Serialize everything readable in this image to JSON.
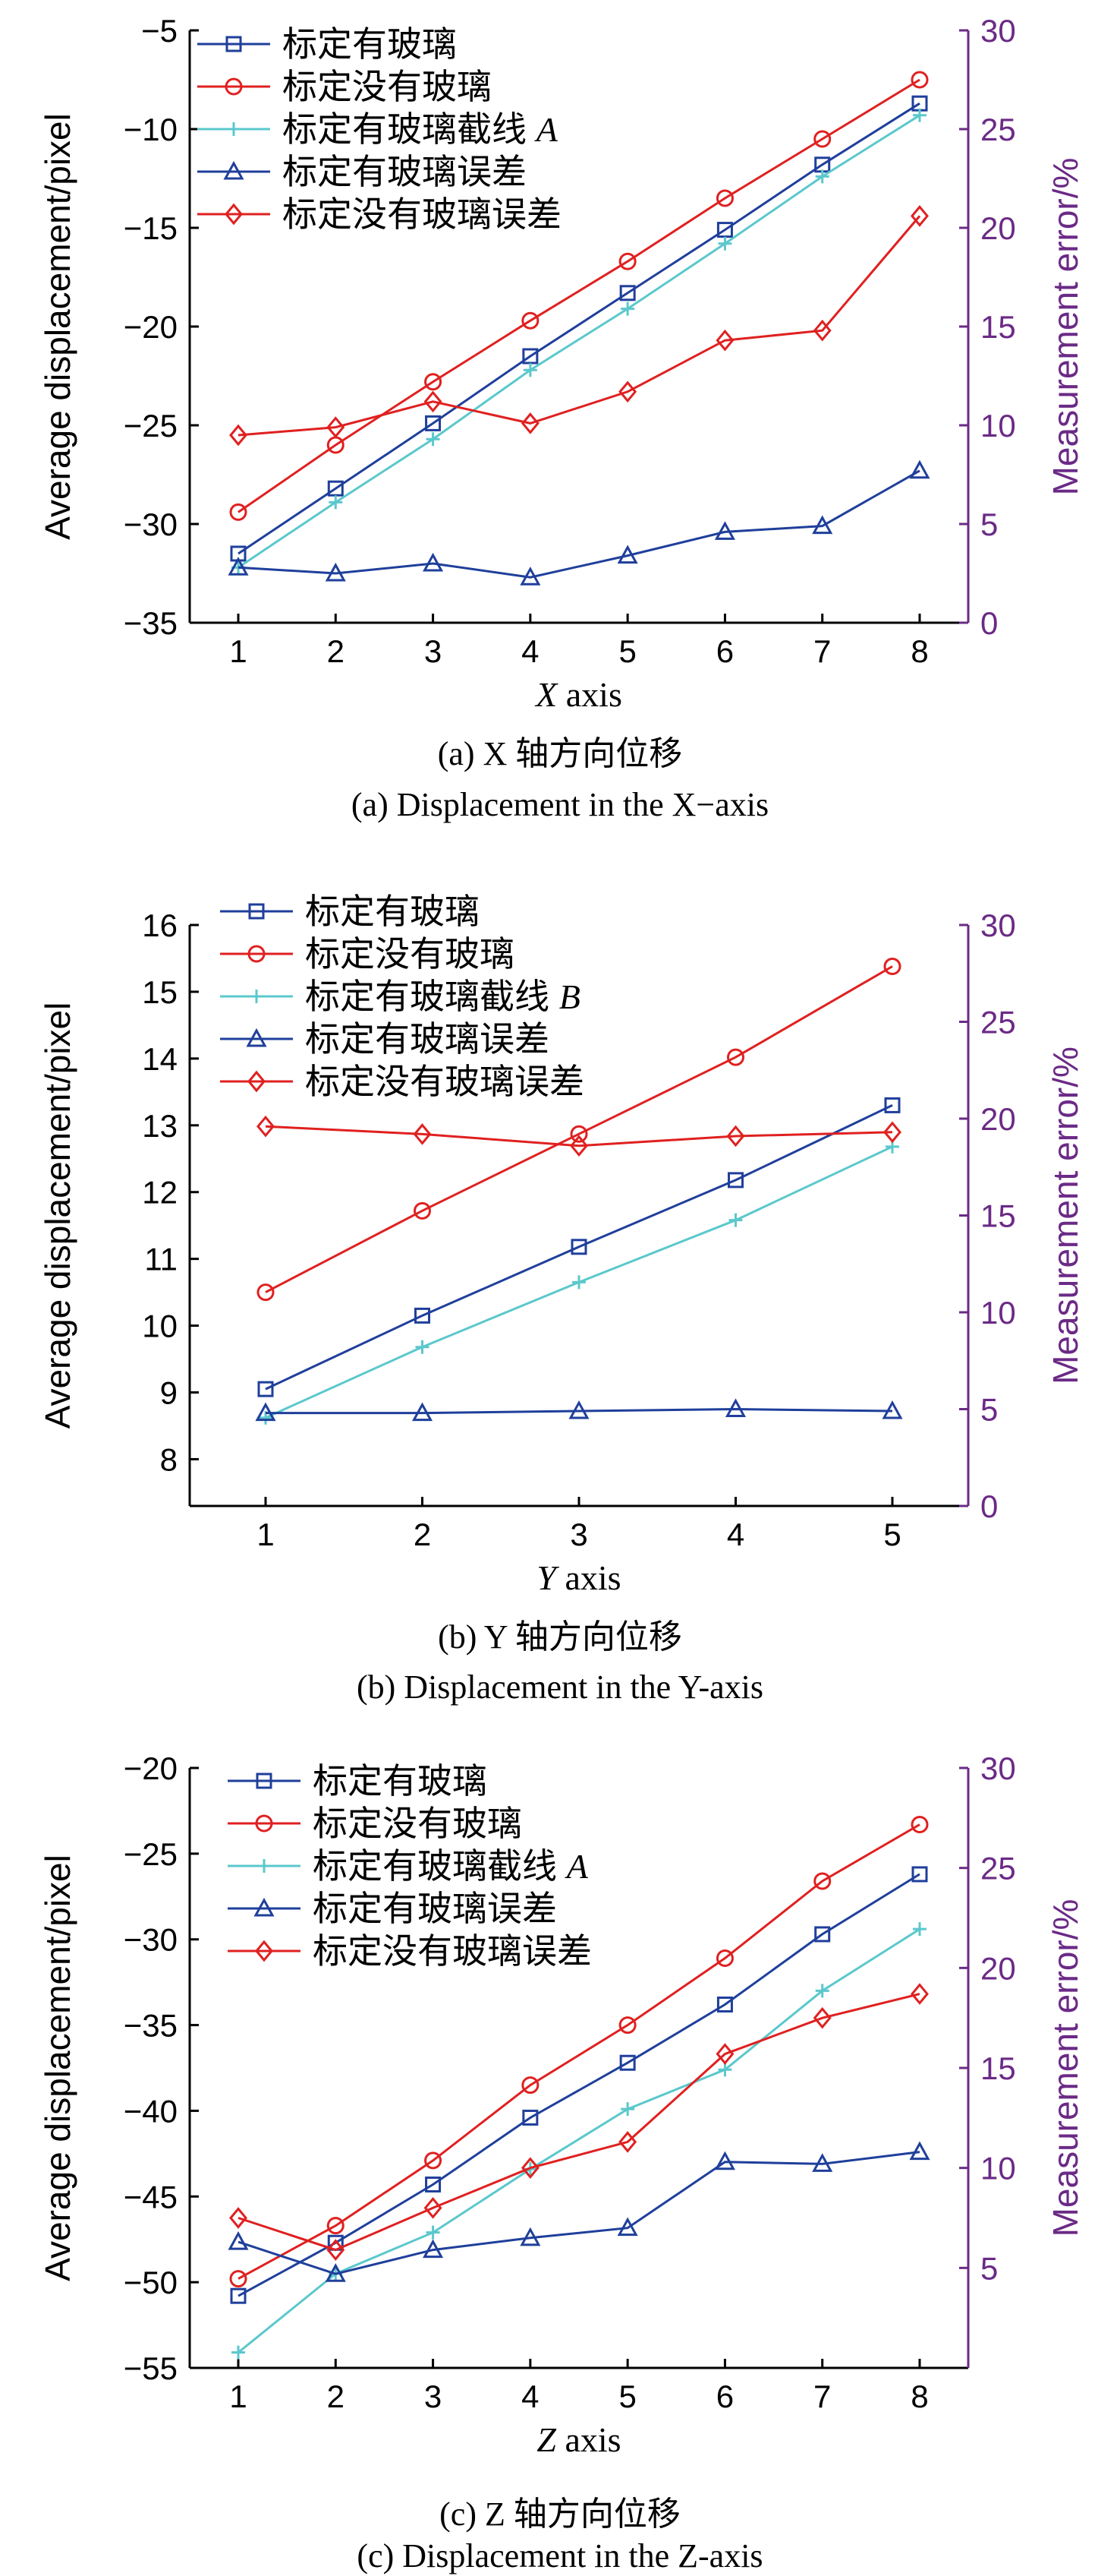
{
  "chart_data": [
    {
      "type": "line",
      "x": [
        1,
        2,
        3,
        4,
        5,
        6,
        7,
        8
      ],
      "xlabel": "X axis",
      "ylabel": "Average displacement/pixel",
      "y2label": "Measurement error/%",
      "ylim": [
        -35,
        -5
      ],
      "yticks": [
        -35,
        -30,
        -25,
        -20,
        -15,
        -10,
        -5
      ],
      "y2lim": [
        0,
        30
      ],
      "y2ticks": [
        0,
        5,
        10,
        15,
        20,
        25,
        30
      ],
      "legend": "top-left",
      "series": [
        {
          "name": "标定有玻璃",
          "axis": "left",
          "marker": "square",
          "color": "#1f3f9b",
          "values": [
            -31.5,
            -28.2,
            -24.9,
            -21.5,
            -18.3,
            -15.1,
            -11.8,
            -8.7
          ]
        },
        {
          "name": "标定没有玻璃",
          "axis": "left",
          "marker": "circle",
          "color": "#e02020",
          "values": [
            -29.4,
            -26.0,
            -22.8,
            -19.7,
            -16.7,
            -13.5,
            -10.5,
            -7.5
          ]
        },
        {
          "name": "标定有玻璃截线 A",
          "axis": "left",
          "marker": "plus",
          "color": "#5bc8cc",
          "values": [
            -32.2,
            -28.9,
            -25.7,
            -22.2,
            -19.1,
            -15.8,
            -12.4,
            -9.3
          ]
        },
        {
          "name": "标定有玻璃误差",
          "axis": "right",
          "marker": "triangle",
          "color": "#1f3f9b",
          "values": [
            2.8,
            2.5,
            3.0,
            2.3,
            3.4,
            4.6,
            4.9,
            7.7
          ]
        },
        {
          "name": "标定没有玻璃误差",
          "axis": "right",
          "marker": "diamond",
          "color": "#e02020",
          "values": [
            9.5,
            9.9,
            11.2,
            10.1,
            11.7,
            14.3,
            14.8,
            20.6
          ]
        }
      ],
      "caption_cn": "(a) X 轴方向位移",
      "caption_en": "(a) Displacement in the X−axis"
    },
    {
      "type": "line",
      "x": [
        1,
        2,
        3,
        4,
        5
      ],
      "xlabel": "Y axis",
      "ylabel": "Average displacement/pixel",
      "y2label": "Measurement error/%",
      "ylim": [
        7.3,
        16
      ],
      "yticks": [
        8,
        9,
        10,
        11,
        12,
        13,
        14,
        15,
        16
      ],
      "y2lim": [
        0,
        30
      ],
      "y2ticks": [
        0,
        5,
        10,
        15,
        20,
        25,
        30
      ],
      "legend": "top-left",
      "series": [
        {
          "name": "标定有玻璃",
          "axis": "left",
          "marker": "square",
          "color": "#1f3f9b",
          "values": [
            9.05,
            10.15,
            11.18,
            12.18,
            13.3
          ]
        },
        {
          "name": "标定没有玻璃",
          "axis": "left",
          "marker": "circle",
          "color": "#e02020",
          "values": [
            10.5,
            11.72,
            12.87,
            14.02,
            15.38
          ]
        },
        {
          "name": "标定有玻璃截线 B",
          "axis": "left",
          "marker": "plus",
          "color": "#5bc8cc",
          "values": [
            8.62,
            9.68,
            10.65,
            11.58,
            12.68
          ]
        },
        {
          "name": "标定有玻璃误差",
          "axis": "right",
          "marker": "triangle",
          "color": "#1f3f9b",
          "values": [
            4.8,
            4.8,
            4.9,
            5.0,
            4.9
          ]
        },
        {
          "name": "标定没有玻璃误差",
          "axis": "right",
          "marker": "diamond",
          "color": "#e02020",
          "values": [
            19.6,
            19.2,
            18.6,
            19.1,
            19.3
          ]
        }
      ],
      "caption_cn": "(b) Y 轴方向位移",
      "caption_en": "(b) Displacement in the Y-axis"
    },
    {
      "type": "line",
      "x": [
        1,
        2,
        3,
        4,
        5,
        6,
        7,
        8
      ],
      "xlabel": "Z axis",
      "ylabel": "Average displacement/pixel",
      "y2label": "Measurement error/%",
      "ylim": [
        -55,
        -20
      ],
      "yticks": [
        -55,
        -50,
        -45,
        -40,
        -35,
        -30,
        -25,
        -20
      ],
      "y2lim": [
        0,
        30
      ],
      "y2ticks": [
        5,
        10,
        15,
        20,
        25,
        30
      ],
      "legend": "top-left",
      "series": [
        {
          "name": "标定有玻璃",
          "axis": "left",
          "marker": "square",
          "color": "#1f3f9b",
          "values": [
            -50.8,
            -47.7,
            -44.3,
            -40.4,
            -37.2,
            -33.8,
            -29.7,
            -26.2
          ]
        },
        {
          "name": "标定没有玻璃",
          "axis": "left",
          "marker": "circle",
          "color": "#e02020",
          "values": [
            -49.8,
            -46.7,
            -42.9,
            -38.5,
            -35.0,
            -31.1,
            -26.6,
            -23.3
          ]
        },
        {
          "name": "标定有玻璃截线 A",
          "axis": "left",
          "marker": "plus",
          "color": "#5bc8cc",
          "values": [
            -54.1,
            -49.5,
            -47.1,
            -43.4,
            -39.9,
            -37.6,
            -33.0,
            -29.4
          ]
        },
        {
          "name": "标定有玻璃误差",
          "axis": "right",
          "marker": "triangle",
          "color": "#1f3f9b",
          "values": [
            6.3,
            4.7,
            5.9,
            6.5,
            7.0,
            10.3,
            10.2,
            10.8
          ]
        },
        {
          "name": "标定没有玻璃误差",
          "axis": "right",
          "marker": "diamond",
          "color": "#e02020",
          "values": [
            7.5,
            5.9,
            8.0,
            10.0,
            11.3,
            15.7,
            17.5,
            18.7
          ]
        }
      ],
      "caption_cn": "(c) Z 轴方向位移",
      "caption_en": "(c) Displacement in the Z-axis"
    }
  ]
}
